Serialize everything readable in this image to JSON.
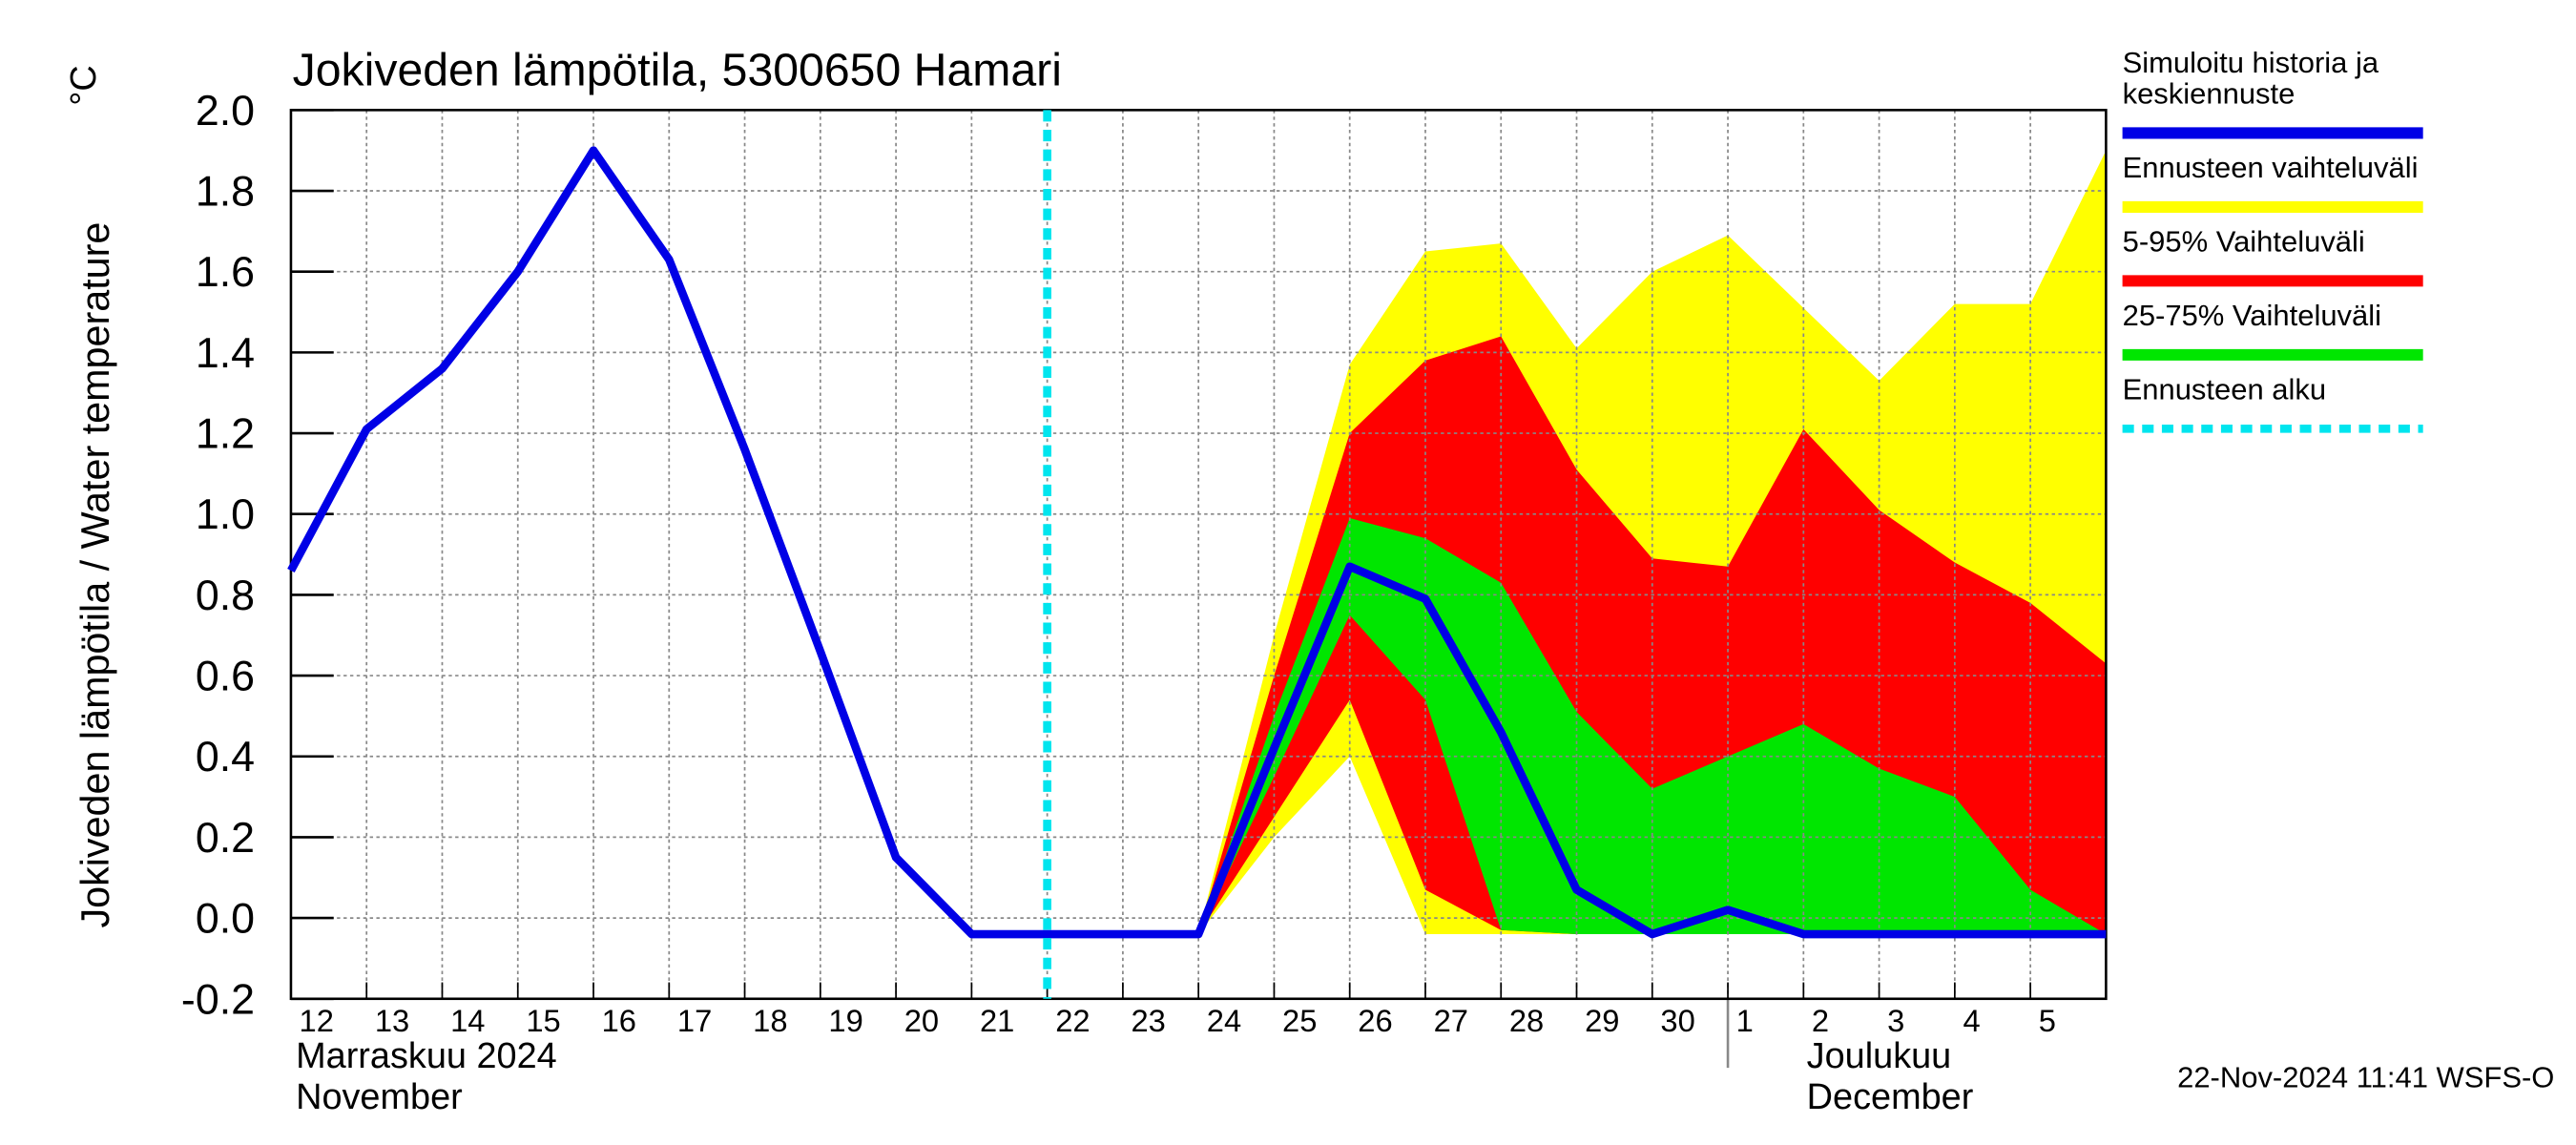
{
  "chart_data": {
    "type": "band-line",
    "title": "Jokiveden lämpötila, 5300650 Hamari",
    "y_label": "Jokiveden lämpötila / Water temperature",
    "y_unit": "°C",
    "categories": [
      "12",
      "13",
      "14",
      "15",
      "16",
      "17",
      "18",
      "19",
      "20",
      "21",
      "22",
      "23",
      "24",
      "25",
      "26",
      "27",
      "28",
      "29",
      "30",
      "1",
      "2",
      "3",
      "4",
      "5",
      null
    ],
    "month_labels": [
      {
        "index": 0,
        "lines": [
          "Marraskuu 2024",
          "November"
        ]
      },
      {
        "index": 19,
        "lines": [
          "Joulukuu",
          "December"
        ]
      }
    ],
    "ylim": [
      -0.2,
      2.0
    ],
    "yticks": [
      -0.2,
      {
        "value": 0,
        "label": "0.0"
      },
      0.2,
      0.4,
      0.6,
      0.8,
      {
        "value": 1,
        "label": "1.0"
      },
      1.2,
      1.4,
      1.6,
      1.8,
      {
        "value": 2,
        "label": "2.0"
      }
    ],
    "grid": true,
    "forecast_start_index": 10,
    "series": [
      {
        "name": "Simuloitu historia ja keskiennuste",
        "kind": "line",
        "color": "#0000e6",
        "values": [
          0.86,
          1.21,
          1.36,
          1.6,
          1.9,
          1.63,
          1.16,
          0.66,
          0.15,
          -0.04,
          -0.04,
          -0.04,
          -0.04,
          0.42,
          0.87,
          0.79,
          0.46,
          0.07,
          -0.04,
          0.02,
          -0.04,
          -0.04,
          -0.04,
          -0.04,
          -0.04
        ]
      },
      {
        "name": "Ennusteen vaihteluväli",
        "kind": "band",
        "color": "#ffff00",
        "high": [
          null,
          null,
          null,
          null,
          null,
          null,
          null,
          null,
          null,
          null,
          null,
          null,
          -0.04,
          0.7,
          1.37,
          1.65,
          1.67,
          1.41,
          1.6,
          1.69,
          1.51,
          1.33,
          1.52,
          1.52,
          1.9
        ],
        "low": [
          null,
          null,
          null,
          null,
          null,
          null,
          null,
          null,
          null,
          null,
          null,
          null,
          -0.04,
          0.2,
          0.4,
          -0.04,
          -0.04,
          -0.04,
          -0.04,
          -0.04,
          -0.04,
          -0.04,
          -0.04,
          -0.04,
          -0.04
        ]
      },
      {
        "name": "5-95% Vaihteluväli",
        "kind": "band",
        "color": "#ff0000",
        "high": [
          null,
          null,
          null,
          null,
          null,
          null,
          null,
          null,
          null,
          null,
          null,
          null,
          -0.04,
          0.6,
          1.2,
          1.38,
          1.44,
          1.11,
          0.89,
          0.87,
          1.21,
          1.01,
          0.88,
          0.78,
          0.63
        ],
        "low": [
          null,
          null,
          null,
          null,
          null,
          null,
          null,
          null,
          null,
          null,
          null,
          null,
          -0.04,
          0.25,
          0.54,
          0.07,
          -0.03,
          -0.04,
          -0.04,
          -0.04,
          -0.04,
          -0.04,
          -0.04,
          -0.04,
          -0.04
        ]
      },
      {
        "name": "25-75% Vaihteluväli",
        "kind": "band",
        "color": "#00e600",
        "high": [
          null,
          null,
          null,
          null,
          null,
          null,
          null,
          null,
          null,
          null,
          null,
          null,
          -0.04,
          0.5,
          0.99,
          0.94,
          0.83,
          0.51,
          0.32,
          0.4,
          0.48,
          0.37,
          0.3,
          0.07,
          -0.04
        ],
        "low": [
          null,
          null,
          null,
          null,
          null,
          null,
          null,
          null,
          null,
          null,
          null,
          null,
          -0.04,
          0.35,
          0.75,
          0.54,
          -0.03,
          -0.04,
          -0.04,
          -0.04,
          -0.04,
          -0.04,
          -0.04,
          -0.04,
          -0.04
        ]
      },
      {
        "name": "Ennusteen alku",
        "kind": "vline",
        "color": "#00e5ee"
      }
    ],
    "footer": "22-Nov-2024 11:41 WSFS-O"
  }
}
